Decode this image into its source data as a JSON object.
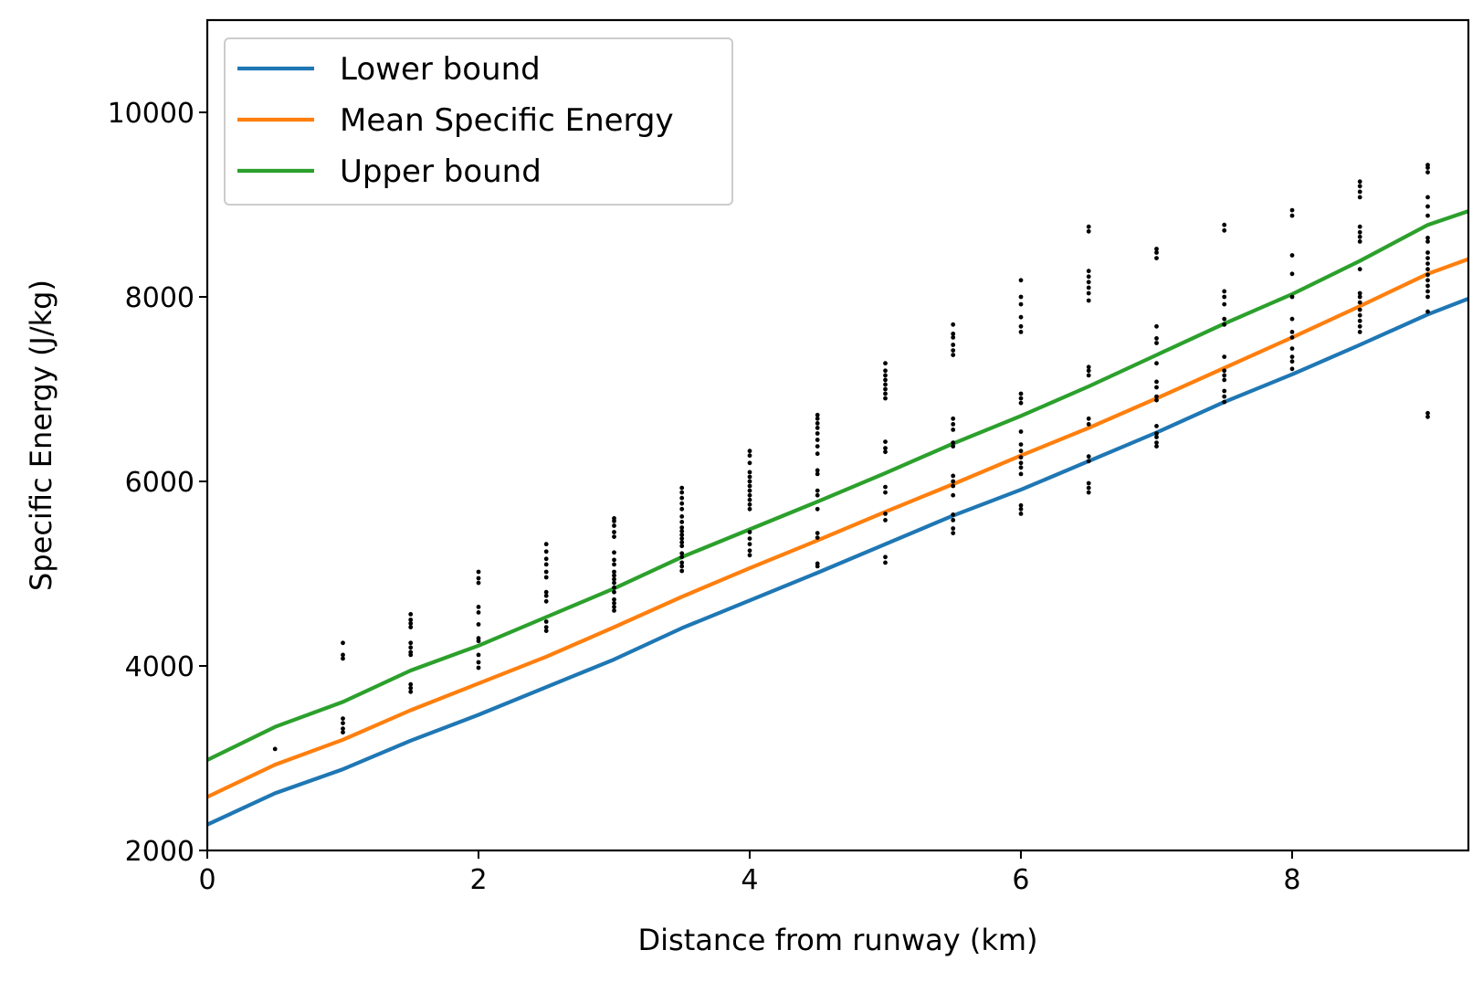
{
  "chart_data": {
    "type": "line",
    "title": "",
    "xlabel": "Distance from runway (km)",
    "ylabel": "Specific Energy (J/kg)",
    "xlim": [
      0,
      9.3
    ],
    "ylim": [
      2000,
      11000
    ],
    "xticks": [
      0,
      2,
      4,
      6,
      8
    ],
    "yticks": [
      2000,
      4000,
      6000,
      8000,
      10000
    ],
    "grid": false,
    "legend_position": "top-left",
    "x": [
      0,
      0.5,
      1,
      1.5,
      2,
      2.5,
      3,
      3.5,
      4,
      4.5,
      5,
      5.5,
      6,
      6.5,
      7,
      7.5,
      8,
      8.5,
      9,
      9.3
    ],
    "series": [
      {
        "name": "Lower bound",
        "color": "#1f77b4",
        "values": [
          2280,
          2620,
          2880,
          3190,
          3470,
          3770,
          4070,
          4410,
          4710,
          5010,
          5320,
          5630,
          5910,
          6220,
          6530,
          6860,
          7160,
          7480,
          7810,
          7980
        ]
      },
      {
        "name": "Mean Specific Energy",
        "color": "#ff7f0e",
        "values": [
          2580,
          2930,
          3200,
          3520,
          3810,
          4100,
          4420,
          4750,
          5060,
          5360,
          5670,
          5970,
          6280,
          6580,
          6900,
          7230,
          7560,
          7900,
          8250,
          8410
        ]
      },
      {
        "name": "Upper bound",
        "color": "#2ca02c",
        "values": [
          2980,
          3340,
          3610,
          3950,
          4220,
          4530,
          4840,
          5180,
          5480,
          5780,
          6090,
          6410,
          6710,
          7030,
          7370,
          7710,
          8030,
          8390,
          8780,
          8930
        ]
      }
    ],
    "scatter_color": "#000000",
    "scatter": [
      {
        "x": 0.5,
        "ys": [
          3100
        ]
      },
      {
        "x": 1,
        "ys": [
          3280,
          3320,
          3380,
          3430,
          4080,
          4120,
          4250
        ]
      },
      {
        "x": 1.5,
        "ys": [
          3720,
          3760,
          3800,
          4120,
          4150,
          4200,
          4250,
          4420,
          4460,
          4500,
          4560
        ]
      },
      {
        "x": 2,
        "ys": [
          3980,
          4040,
          4120,
          4270,
          4300,
          4450,
          4580,
          4640,
          4900,
          4950,
          5020
        ]
      },
      {
        "x": 2.5,
        "ys": [
          4380,
          4420,
          4480,
          4700,
          4760,
          4800,
          4960,
          5020,
          5100,
          5160,
          5240,
          5320
        ]
      },
      {
        "x": 3,
        "ys": [
          4600,
          4640,
          4680,
          4720,
          4800,
          4850,
          4900,
          4940,
          4980,
          5020,
          5100,
          5150,
          5230,
          5400,
          5450,
          5520,
          5570,
          5600
        ]
      },
      {
        "x": 3.5,
        "ys": [
          5030,
          5080,
          5120,
          5180,
          5220,
          5300,
          5340,
          5380,
          5420,
          5460,
          5500,
          5560,
          5620,
          5700,
          5760,
          5820,
          5880,
          5930
        ]
      },
      {
        "x": 4,
        "ys": [
          5200,
          5250,
          5320,
          5380,
          5450,
          5700,
          5750,
          5800,
          5850,
          5900,
          5950,
          6000,
          6050,
          6100,
          6200,
          6280,
          6330
        ]
      },
      {
        "x": 4.5,
        "ys": [
          5080,
          5110,
          5390,
          5440,
          5700,
          5850,
          5900,
          6080,
          6120,
          6300,
          6380,
          6450,
          6520,
          6580,
          6630,
          6680,
          6720
        ]
      },
      {
        "x": 5,
        "ys": [
          5120,
          5180,
          5580,
          5650,
          5880,
          5940,
          6320,
          6360,
          6430,
          6900,
          6950,
          7000,
          7050,
          7100,
          7150,
          7200,
          7280
        ]
      },
      {
        "x": 5.5,
        "ys": [
          5440,
          5490,
          5580,
          5640,
          5850,
          5950,
          6000,
          6060,
          6380,
          6420,
          6560,
          6620,
          6680,
          7370,
          7420,
          7480,
          7560,
          7600,
          7700
        ]
      },
      {
        "x": 6,
        "ys": [
          5650,
          5700,
          5740,
          6080,
          6150,
          6200,
          6260,
          6330,
          6400,
          6540,
          6850,
          6900,
          6950,
          7620,
          7680,
          7780,
          7920,
          8000,
          8180
        ]
      },
      {
        "x": 6.5,
        "ys": [
          5880,
          5930,
          5980,
          6220,
          6270,
          6620,
          6680,
          7150,
          7200,
          7240,
          7960,
          8040,
          8100,
          8160,
          8220,
          8280,
          8710,
          8760
        ]
      },
      {
        "x": 7,
        "ys": [
          6380,
          6420,
          6480,
          6520,
          6600,
          6880,
          6920,
          7020,
          7080,
          7280,
          7500,
          7550,
          7680,
          8420,
          8480,
          8520
        ]
      },
      {
        "x": 7.5,
        "ys": [
          6860,
          6920,
          6980,
          7100,
          7150,
          7200,
          7350,
          7700,
          7760,
          7920,
          8000,
          8060,
          8720,
          8780
        ]
      },
      {
        "x": 8,
        "ys": [
          7220,
          7300,
          7350,
          7440,
          7560,
          7620,
          7760,
          8000,
          8250,
          8450,
          8880,
          8940
        ]
      },
      {
        "x": 8.5,
        "ys": [
          7620,
          7680,
          7740,
          7800,
          7860,
          7940,
          8000,
          8040,
          8300,
          8600,
          8650,
          8700,
          8760,
          9080,
          9140,
          9200,
          9250
        ]
      },
      {
        "x": 9,
        "ys": [
          6700,
          6740,
          7840,
          8000,
          8060,
          8120,
          8180,
          8240,
          8300,
          8360,
          8420,
          8480,
          8600,
          8640,
          8880,
          8980,
          9080,
          9350,
          9400,
          9430
        ]
      }
    ]
  }
}
